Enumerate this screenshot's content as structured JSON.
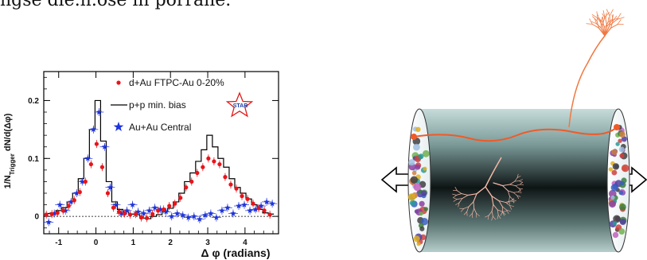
{
  "header": {
    "text": "ngse dle.n.ose in porrane."
  },
  "chart_data": {
    "type": "scatter",
    "xlabel": "Δ φ (radians)",
    "ylabel": "1/N_Trigger dN/d(Δφ)",
    "ylabel_main": "1/N",
    "ylabel_sub": "Trigger",
    "ylabel_tail": " dN/d(Δφ)",
    "xlim": [
      -1.4,
      4.9
    ],
    "ylim": [
      -0.03,
      0.25
    ],
    "xticks": [
      -1,
      0,
      1,
      2,
      3,
      4
    ],
    "yticks": [
      0,
      0.1,
      0.2
    ],
    "ytick_labels": [
      "0",
      "0.1",
      "0.2"
    ],
    "logo": "STAR",
    "legend_position": "top-right",
    "series": [
      {
        "name": "d+Au FTPC-Au 0-20%",
        "marker": "circle",
        "color": "#e8141a",
        "x": [
          -1.3,
          -1.15,
          -1.0,
          -0.85,
          -0.7,
          -0.55,
          -0.4,
          -0.25,
          -0.1,
          0.05,
          0.2,
          0.35,
          0.5,
          0.65,
          0.8,
          0.95,
          1.1,
          1.25,
          1.4,
          1.55,
          1.7,
          1.85,
          2.0,
          2.15,
          2.3,
          2.45,
          2.6,
          2.75,
          2.9,
          3.05,
          3.2,
          3.35,
          3.5,
          3.65,
          3.8,
          3.95,
          4.1,
          4.25,
          4.4,
          4.55,
          4.7
        ],
        "y": [
          0.003,
          0.004,
          0.006,
          0.01,
          0.018,
          0.028,
          0.042,
          0.06,
          0.09,
          0.125,
          0.085,
          0.04,
          0.015,
          0.008,
          0.005,
          0.003,
          0.004,
          -0.002,
          -0.003,
          0.004,
          0.01,
          0.012,
          0.018,
          0.022,
          0.032,
          0.05,
          0.06,
          0.075,
          0.085,
          0.1,
          0.095,
          0.09,
          0.068,
          0.055,
          0.048,
          0.035,
          0.03,
          0.022,
          0.014,
          0.01,
          0.003
        ]
      },
      {
        "name": "p+p min. bias",
        "marker": "histogram",
        "color": "#000000",
        "x": [
          -1.3,
          -1.15,
          -1.0,
          -0.85,
          -0.7,
          -0.55,
          -0.4,
          -0.25,
          -0.1,
          0.05,
          0.2,
          0.35,
          0.5,
          0.65,
          0.8,
          0.95,
          1.1,
          1.25,
          1.4,
          1.55,
          1.7,
          1.85,
          2.0,
          2.15,
          2.3,
          2.45,
          2.6,
          2.75,
          2.9,
          3.05,
          3.2,
          3.35,
          3.5,
          3.65,
          3.8,
          3.95,
          4.1,
          4.25,
          4.4,
          4.55,
          4.7
        ],
        "y": [
          0.005,
          0.006,
          0.01,
          0.015,
          0.025,
          0.04,
          0.065,
          0.1,
          0.15,
          0.2,
          0.13,
          0.06,
          0.025,
          0.012,
          0.008,
          0.004,
          0.003,
          -0.003,
          -0.004,
          0.0,
          0.003,
          0.008,
          0.014,
          0.025,
          0.04,
          0.06,
          0.075,
          0.095,
          0.115,
          0.14,
          0.12,
          0.1,
          0.085,
          0.065,
          0.05,
          0.04,
          0.03,
          0.02,
          0.012,
          0.006,
          0.004
        ]
      },
      {
        "name": "Au+Au Central",
        "marker": "star",
        "color": "#1f34d8",
        "x": [
          -1.3,
          -1.15,
          -1.0,
          -0.85,
          -0.7,
          -0.55,
          -0.4,
          -0.25,
          -0.1,
          0.05,
          0.2,
          0.35,
          0.5,
          0.65,
          0.8,
          0.95,
          1.1,
          1.25,
          1.4,
          1.55,
          1.7,
          1.85,
          2.0,
          2.15,
          2.3,
          2.45,
          2.6,
          2.75,
          2.9,
          3.05,
          3.2,
          3.35,
          3.5,
          3.65,
          3.8,
          3.95,
          4.1,
          4.25,
          4.4,
          4.55,
          4.7
        ],
        "y": [
          -0.01,
          0.005,
          0.02,
          0.01,
          0.025,
          0.04,
          0.06,
          0.1,
          0.15,
          0.18,
          0.12,
          0.05,
          0.02,
          0.005,
          0.01,
          0.02,
          0.008,
          0.005,
          0.01,
          0.015,
          0.012,
          0.008,
          0.0,
          0.005,
          0.002,
          -0.002,
          0.0,
          -0.005,
          0.002,
          0.005,
          -0.002,
          0.01,
          0.015,
          0.005,
          0.018,
          0.02,
          0.01,
          0.012,
          0.018,
          0.025,
          0.022
        ]
      }
    ]
  },
  "illustration": {
    "colors": {
      "tube_dark": "#1a2222",
      "tube_light": "#b8d4d2",
      "jet_red": "#f05a28",
      "jet_pale": "#f6b8a8",
      "jet_orange": "#f07840"
    },
    "icons": [
      "left-arrow-icon",
      "right-arrow-icon"
    ]
  }
}
